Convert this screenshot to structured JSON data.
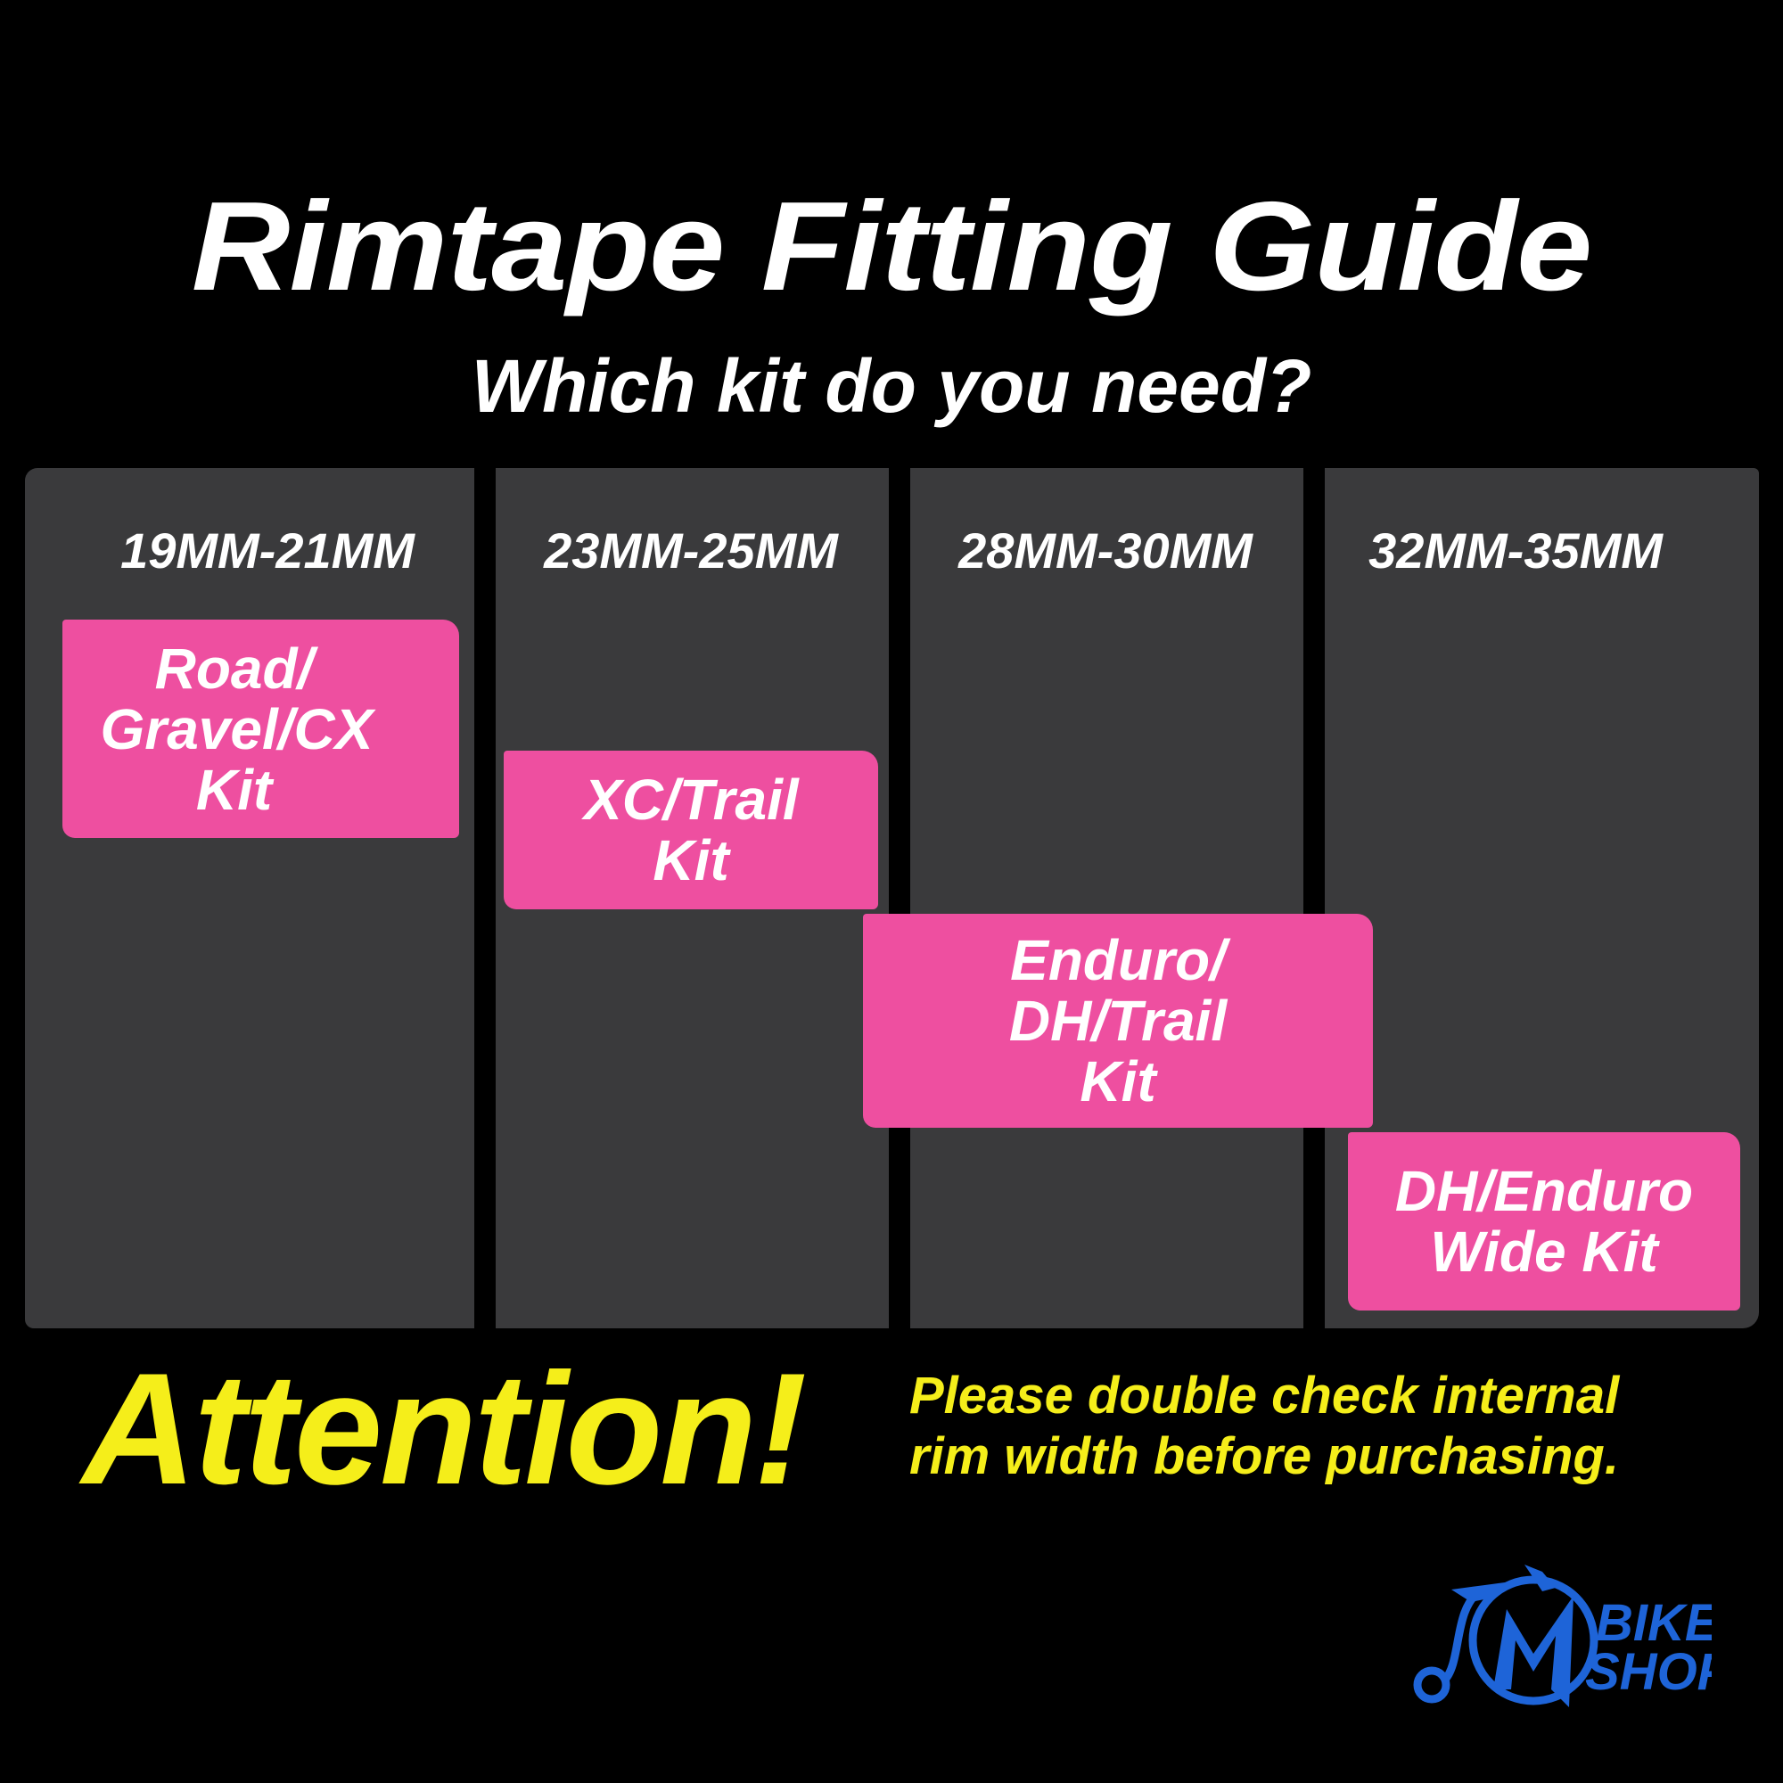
{
  "header": {
    "title": "Rimtape Fitting Guide",
    "subtitle": "Which kit do you need?"
  },
  "columns": [
    {
      "range": "19MM-21MM",
      "kit": "Road/ Gravel/CX Kit"
    },
    {
      "range": "23MM-25MM",
      "kit": "XC/Trail Kit"
    },
    {
      "range": "28MM-30MM",
      "kit": "Enduro/ DH/Trail Kit"
    },
    {
      "range": "32MM-35MM",
      "kit": "DH/Enduro Wide Kit"
    }
  ],
  "footer": {
    "attention": "Attention!",
    "notice_line1": "Please double check internal",
    "notice_line2": "rim width before purchasing."
  },
  "logo": {
    "text_line1": "BIKE",
    "text_line2": "SHOP",
    "icon": "penny-farthing-bicycle-icon"
  },
  "colors": {
    "background": "#000000",
    "board": "#3a3a3c",
    "kit": "#ee4fa0",
    "attention": "#f5ee1a",
    "logo": "#1e64d8"
  }
}
